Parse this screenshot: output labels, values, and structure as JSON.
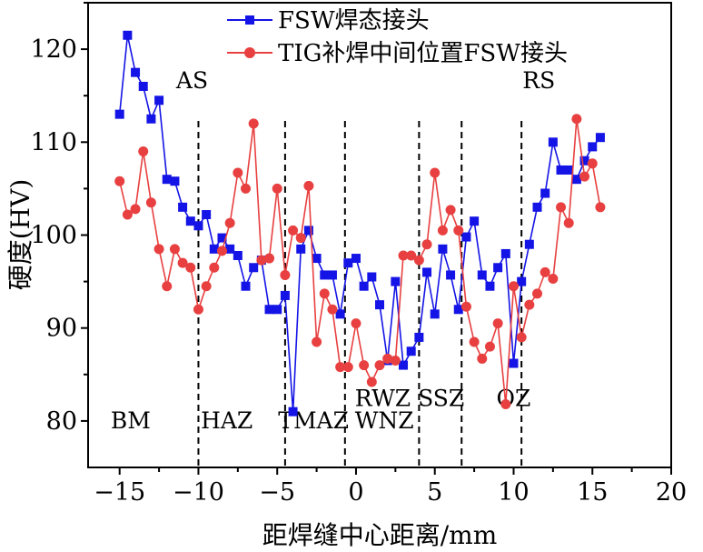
{
  "colors": {
    "fsw": "#1414e6",
    "tig": "#e84040",
    "axis": "#000000"
  },
  "chart_data": {
    "type": "line",
    "xlabel": "距焊缝中心距离/mm",
    "ylabel": "硬度(HV)",
    "xlim": [
      -17,
      20
    ],
    "ylim": [
      75,
      125
    ],
    "xticks": [
      -15,
      -10,
      -5,
      0,
      5,
      10,
      15,
      20
    ],
    "yticks": [
      80,
      90,
      100,
      110,
      120
    ],
    "xtick_labels": [
      "−15",
      "−10",
      "−5",
      "0",
      "5",
      "10",
      "15",
      "20"
    ],
    "ytick_labels": [
      "80",
      "90",
      "100",
      "110",
      "120"
    ],
    "grid": false,
    "legend_position": "top-center",
    "boundaries": [
      -10,
      -4.5,
      -0.7,
      4,
      6.7,
      10.5
    ],
    "region_labels": [
      {
        "text": "BM",
        "x": -14.3,
        "y": 79.2
      },
      {
        "text": "HAZ",
        "x": -8.2,
        "y": 79.2
      },
      {
        "text": "TMAZ",
        "x": -2.7,
        "y": 79.2
      },
      {
        "text": "WNZ",
        "x": 1.8,
        "y": 79.2
      },
      {
        "text": "RWZ",
        "x": 1.7,
        "y": 81.6
      },
      {
        "text": "SSZ",
        "x": 5.4,
        "y": 81.6
      },
      {
        "text": "OZ",
        "x": 10.0,
        "y": 81.6
      },
      {
        "text": "AS",
        "x": -10.4,
        "y": 115.8
      },
      {
        "text": "RS",
        "x": 11.6,
        "y": 115.8
      }
    ],
    "series": [
      {
        "name": "FSW焊态接头",
        "marker": "square",
        "x": [
          -15,
          -14.5,
          -14,
          -13.5,
          -13,
          -12.5,
          -12,
          -11.5,
          -11,
          -10.5,
          -10,
          -9.5,
          -9,
          -8.5,
          -8,
          -7.5,
          -7,
          -6.5,
          -6,
          -5.5,
          -5,
          -4.5,
          -4,
          -3.5,
          -3,
          -2.5,
          -2,
          -1.5,
          -1,
          -0.5,
          0,
          0.5,
          1,
          1.5,
          2,
          2.5,
          3,
          3.5,
          4,
          4.5,
          5,
          5.5,
          6,
          6.5,
          7,
          7.5,
          8,
          8.5,
          9,
          9.5,
          10,
          10.5,
          11,
          11.5,
          12,
          12.5,
          13,
          13.5,
          14,
          14.5,
          15,
          15.5
        ],
        "y": [
          113,
          121.5,
          117.5,
          116,
          112.5,
          114.5,
          106,
          105.8,
          103,
          101.5,
          101,
          102.2,
          98.5,
          99.7,
          98.5,
          97.8,
          94.5,
          96.5,
          97.3,
          92,
          92,
          93.5,
          81,
          98.5,
          100.5,
          97.5,
          95.7,
          95.7,
          91.5,
          97,
          97.5,
          94.5,
          95.5,
          92.5,
          86.5,
          95,
          86,
          87.5,
          89,
          96,
          91.5,
          98.5,
          95.7,
          92,
          99.8,
          101.5,
          95.7,
          94.5,
          96.5,
          98,
          86.2,
          95,
          99,
          103,
          104.5,
          110,
          107,
          107,
          106,
          108,
          109.5,
          110.5
        ]
      },
      {
        "name": "TIG补焊中间位置FSW接头",
        "marker": "circle",
        "x": [
          -15,
          -14.5,
          -14,
          -13.5,
          -13,
          -12.5,
          -12,
          -11.5,
          -11,
          -10.5,
          -10,
          -9.5,
          -9,
          -8.5,
          -8,
          -7.5,
          -7,
          -6.5,
          -6,
          -5.5,
          -5,
          -4.5,
          -4,
          -3.5,
          -3,
          -2.5,
          -2,
          -1.5,
          -1,
          -0.5,
          0,
          0.5,
          1,
          1.5,
          2,
          2.5,
          3,
          3.5,
          4,
          4.5,
          5,
          5.5,
          6,
          6.5,
          7,
          7.5,
          8,
          8.5,
          9,
          9.5,
          10,
          10.5,
          11,
          11.5,
          12,
          12.5,
          13,
          13.5,
          14,
          14.5,
          15,
          15.5
        ],
        "y": [
          105.8,
          102.2,
          102.8,
          109,
          103.5,
          98.5,
          94.5,
          98.5,
          97,
          96.5,
          92,
          94.5,
          96.5,
          98.3,
          101.3,
          106.7,
          105,
          112,
          97.3,
          97.5,
          105,
          95.7,
          100.5,
          99.7,
          105.3,
          88.5,
          93.7,
          92,
          85.8,
          85.8,
          90.5,
          86,
          84.2,
          86,
          86.7,
          86.5,
          97.8,
          97.8,
          97.3,
          99,
          106.7,
          100.5,
          102.7,
          100.5,
          92.3,
          88.5,
          86.7,
          88,
          90.5,
          81.8,
          94.5,
          89,
          92.5,
          93.7,
          96,
          95.3,
          103,
          101.3,
          112.5,
          106.3,
          107.7,
          103
        ]
      }
    ]
  }
}
